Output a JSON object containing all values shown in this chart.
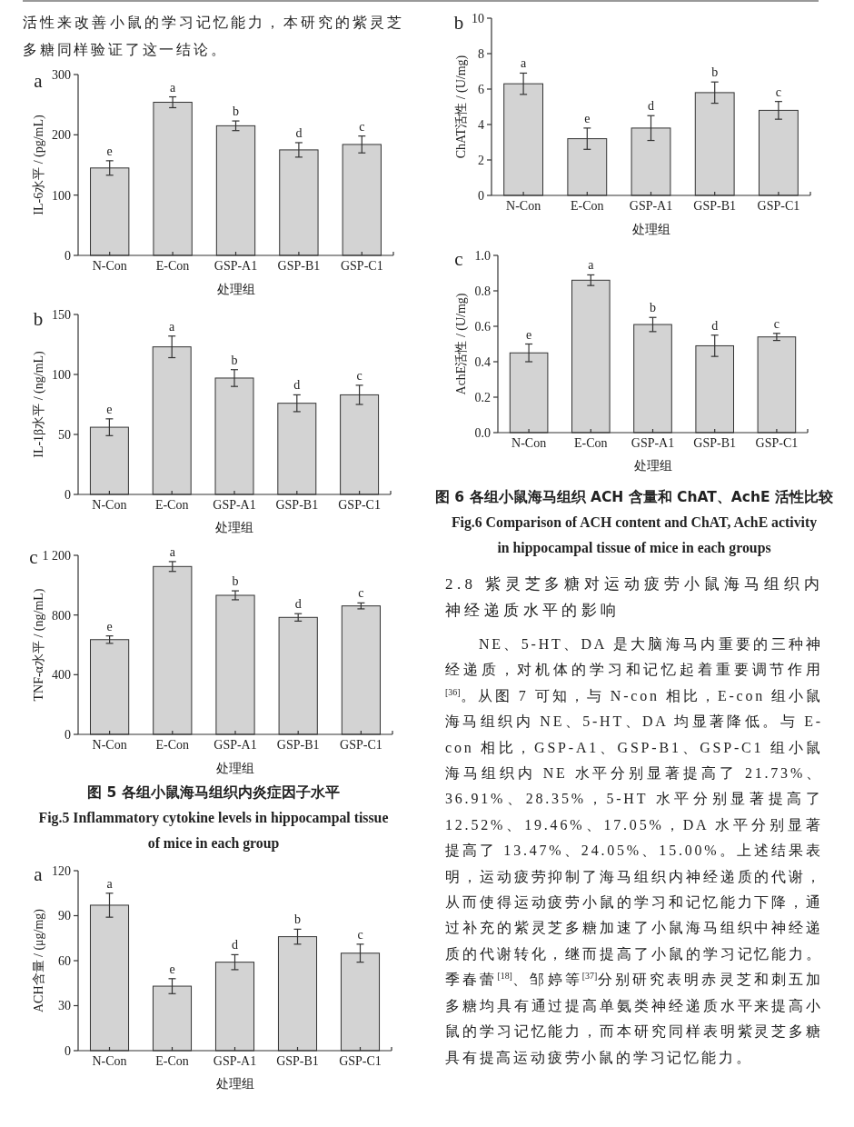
{
  "chart_data": [
    {
      "type": "other",
      "annotations": [
        "活性来改善小鼠的学习记忆能力，本研究的紫灵芝多糖同样验证了这一结论。"
      ]
    },
    {
      "type": "bar",
      "title": "a",
      "xlabel": "处理组",
      "ylabel": "IL-6水平 / (pg/mL)",
      "categories": [
        "N-Con",
        "E-Con",
        "GSP-A1",
        "GSP-B1",
        "GSP-C1"
      ],
      "values": [
        145,
        254,
        215,
        175,
        184
      ],
      "errors": [
        12,
        9,
        8,
        12,
        14
      ],
      "color": "#d3d3d3",
      "ylim": [
        0,
        300
      ],
      "yticks": [
        0,
        100,
        200,
        300
      ],
      "annotations": [
        {
          "text": "e",
          "x": "N-Con",
          "y": 157
        },
        {
          "text": "a",
          "x": "E-Con",
          "y": 263
        },
        {
          "text": "b",
          "x": "GSP-A1",
          "y": 223
        },
        {
          "text": "d",
          "x": "GSP-B1",
          "y": 187
        },
        {
          "text": "c",
          "x": "GSP-C1",
          "y": 198
        }
      ]
    },
    {
      "type": "bar",
      "title": "b",
      "xlabel": "处理组",
      "ylabel": "IL-1β水平 / (ng/mL)",
      "categories": [
        "N-Con",
        "E-Con",
        "GSP-A1",
        "GSP-B1",
        "GSP-C1"
      ],
      "values": [
        56,
        123,
        97,
        76,
        83
      ],
      "errors": [
        7,
        9,
        7,
        7,
        8
      ],
      "color": "#d3d3d3",
      "ylim": [
        0,
        150
      ],
      "yticks": [
        0,
        50,
        100,
        150
      ],
      "annotations": [
        {
          "text": "e",
          "x": "N-Con",
          "y": 63
        },
        {
          "text": "a",
          "x": "E-Con",
          "y": 132
        },
        {
          "text": "b",
          "x": "GSP-A1",
          "y": 104
        },
        {
          "text": "d",
          "x": "GSP-B1",
          "y": 83
        },
        {
          "text": "c",
          "x": "GSP-C1",
          "y": 91
        }
      ]
    },
    {
      "type": "bar",
      "title": "c",
      "xlabel": "处理组",
      "ylabel": "TNF-α水平 / (ng/mL)",
      "categories": [
        "N-Con",
        "E-Con",
        "GSP-A1",
        "GSP-B1",
        "GSP-C1"
      ],
      "values": [
        635,
        1125,
        932,
        784,
        861
      ],
      "errors": [
        25,
        33,
        30,
        25,
        20
      ],
      "color": "#d3d3d3",
      "ylim": [
        0,
        1200
      ],
      "yticks": [
        0,
        400,
        800,
        {
          "value": 1200,
          "label": "1 200"
        }
      ],
      "annotations": [
        {
          "text": "e",
          "x": "N-Con",
          "y": 660
        },
        {
          "text": "a",
          "x": "E-Con",
          "y": 1158
        },
        {
          "text": "b",
          "x": "GSP-A1",
          "y": 962
        },
        {
          "text": "d",
          "x": "GSP-B1",
          "y": 809
        },
        {
          "text": "c",
          "x": "GSP-C1",
          "y": 881
        },
        "图 5 各组小鼠海马组织内炎症因子水平",
        "Fig.5 Inflammatory cytokine levels in hippocampal tissue of mice in each group"
      ]
    },
    {
      "type": "bar",
      "title": "a",
      "xlabel": "处理组",
      "ylabel": "ACH含量 / (μg/mg)",
      "categories": [
        "N-Con",
        "E-Con",
        "GSP-A1",
        "GSP-B1",
        "GSP-C1"
      ],
      "values": [
        97,
        43,
        59,
        76,
        65
      ],
      "errors": [
        8,
        5,
        5,
        5,
        6
      ],
      "color": "#d3d3d3",
      "ylim": [
        0,
        120
      ],
      "yticks": [
        0,
        30,
        60,
        90,
        120
      ],
      "annotations": [
        {
          "text": "a",
          "x": "N-Con",
          "y": 105
        },
        {
          "text": "e",
          "x": "E-Con",
          "y": 48
        },
        {
          "text": "d",
          "x": "GSP-A1",
          "y": 64
        },
        {
          "text": "b",
          "x": "GSP-B1",
          "y": 81
        },
        {
          "text": "c",
          "x": "GSP-C1",
          "y": 71
        }
      ]
    },
    {
      "type": "bar",
      "title": "b",
      "xlabel": "处理组",
      "ylabel": "ChAT活性 / (U/mg)",
      "categories": [
        "N-Con",
        "E-Con",
        "GSP-A1",
        "GSP-B1",
        "GSP-C1"
      ],
      "values": [
        6.3,
        3.2,
        3.8,
        5.8,
        4.8
      ],
      "errors": [
        0.6,
        0.6,
        0.7,
        0.6,
        0.5
      ],
      "color": "#d3d3d3",
      "ylim": [
        0,
        10
      ],
      "yticks": [
        0,
        2,
        4,
        6,
        8,
        10
      ],
      "annotations": [
        {
          "text": "a",
          "x": "N-Con",
          "y": 6.9
        },
        {
          "text": "e",
          "x": "E-Con",
          "y": 3.8
        },
        {
          "text": "d",
          "x": "GSP-A1",
          "y": 4.5
        },
        {
          "text": "b",
          "x": "GSP-B1",
          "y": 6.4
        },
        {
          "text": "c",
          "x": "GSP-C1",
          "y": 5.3
        }
      ]
    },
    {
      "type": "bar",
      "title": "c",
      "xlabel": "处理组",
      "ylabel": "AchE活性 / (U/mg)",
      "categories": [
        "N-Con",
        "E-Con",
        "GSP-A1",
        "GSP-B1",
        "GSP-C1"
      ],
      "values": [
        0.45,
        0.86,
        0.61,
        0.49,
        0.54
      ],
      "errors": [
        0.05,
        0.03,
        0.04,
        0.06,
        0.02
      ],
      "color": "#d3d3d3",
      "ylim": [
        0,
        1
      ],
      "yticks": [
        {
          "value": 0,
          "label": "0.0"
        },
        0.2,
        0.4,
        0.6,
        0.8,
        {
          "value": 1,
          "label": "1.0"
        }
      ],
      "annotations": [
        {
          "text": "e",
          "x": "N-Con",
          "y": 0.5
        },
        {
          "text": "a",
          "x": "E-Con",
          "y": 0.89
        },
        {
          "text": "b",
          "x": "GSP-A1",
          "y": 0.65
        },
        {
          "text": "d",
          "x": "GSP-B1",
          "y": 0.55
        },
        {
          "text": "c",
          "x": "GSP-C1",
          "y": 0.56
        },
        "图 6 各组小鼠海马组织 ACH 含量和 ChAT、AchE 活性比较",
        "Fig.6 Comparison of ACH content and ChAT, AchE activity in hippocampal tissue of mice in each groups"
      ]
    },
    {
      "type": "other",
      "title": "2.8 紫灵芝多糖对运动疲劳小鼠海马组织内神经递质水平的影响",
      "annotations": [
        "NE、5-HT、DA 是大脑海马内重要的三种神经递质，对机体的学习和记忆起着重要调节作用$^{[36]}$。从图 7 可知，与 N-con 相比，E-con 组小鼠海马组织内 NE、5-HT、DA 均显著降低。与 E-con 相比，GSP-A1、GSP-B1、GSP-C1 组小鼠海马组织内 NE 水平分别显著提高了 21.73%、36.91%、28.35%，5-HT 水平分别显著提高了 12.52%、19.46%、17.05%，DA 水平分别显著提高了 13.47%、24.05%、15.00%。上述结果表明，运动疲劳抑制了海马组织内神经递质的代谢，从而使得运动疲劳小鼠的学习和记忆能力下降，通过补充的紫灵芝多糖加速了小鼠海马组织中神经递质的代谢转化，继而提高了小鼠的学习记忆能力。季春蕾$^{[18]}$、邹婷等$^{[37]}$分别研究表明赤灵芝和刺五加多糖均具有通过提高单氨类神经递质水平来提高小鼠的学习记忆能力，而本研究同样表明紫灵芝多糖具有提高运动疲劳小鼠的学习记忆能力。"
      ]
    }
  ]
}
